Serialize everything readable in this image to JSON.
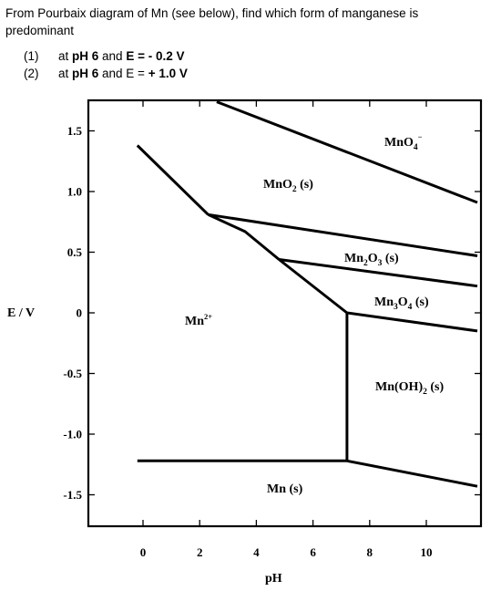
{
  "question": {
    "intro": "From Pourbaix diagram of Mn (see below), find which form of manganese is predominant",
    "items": [
      {
        "num": "(1)",
        "prefix": "at ",
        "ph": "pH 6",
        "mid": " and ",
        "e": "E = - 0.2 V"
      },
      {
        "num": "(2)",
        "prefix": "at ",
        "ph": "pH 6",
        "mid": " and E = ",
        "e": "+ 1.0 V"
      }
    ]
  },
  "diagram": {
    "xlabel": "pH",
    "ylabel": "E / V",
    "x_ticks": [
      "0",
      "2",
      "4",
      "6",
      "8",
      "10"
    ],
    "y_ticks": [
      "1.5",
      "1.0",
      "0.5",
      "0",
      "-0.5",
      "-1.0",
      "-1.5"
    ],
    "regions": {
      "mno4": {
        "base": "MnO",
        "sub": "4",
        "sup": "−"
      },
      "mno2": {
        "base": "MnO",
        "sub": "2",
        "tail": " (s)"
      },
      "mn2o3": {
        "a": "Mn",
        "sub1": "2",
        "b": "O",
        "sub2": "3",
        "tail": " (s)"
      },
      "mn3o4": {
        "a": "Mn",
        "sub1": "3",
        "b": "O",
        "sub2": "4",
        "tail": " (s)"
      },
      "mn2plus": {
        "base": "Mn",
        "sup": "2+"
      },
      "mnoh2": {
        "base": "Mn(OH)",
        "sub": "2",
        "tail": " (s)"
      },
      "mn": {
        "base": "Mn (s)"
      }
    },
    "boundaries": [
      {
        "name": "mno4-mno2",
        "points": [
          [
            2.6,
            1.74
          ],
          [
            11.8,
            0.91
          ]
        ]
      },
      {
        "name": "mn2plus-mno2",
        "points": [
          [
            -0.2,
            1.38
          ],
          [
            2.3,
            0.81
          ]
        ]
      },
      {
        "name": "mno2-mn2o3",
        "points": [
          [
            2.3,
            0.81
          ],
          [
            11.8,
            0.47
          ]
        ]
      },
      {
        "name": "mn2plus-mn2o3",
        "points": [
          [
            2.3,
            0.81
          ],
          [
            3.6,
            0.67
          ],
          [
            4.8,
            0.44
          ]
        ]
      },
      {
        "name": "mn2o3-mn3o4",
        "points": [
          [
            4.8,
            0.44
          ],
          [
            11.8,
            0.22
          ]
        ]
      },
      {
        "name": "mn2plus-mn3o4",
        "points": [
          [
            4.8,
            0.44
          ],
          [
            7.2,
            0.0
          ]
        ]
      },
      {
        "name": "mn3o4-mnoh2",
        "points": [
          [
            7.2,
            0.0
          ],
          [
            11.8,
            -0.15
          ]
        ]
      },
      {
        "name": "mn2plus-mnoh2",
        "points": [
          [
            7.2,
            0.0
          ],
          [
            7.2,
            -1.22
          ]
        ]
      },
      {
        "name": "mn2plus-mn",
        "points": [
          [
            -0.2,
            -1.22
          ],
          [
            7.2,
            -1.22
          ]
        ]
      },
      {
        "name": "mnoh2-mn",
        "points": [
          [
            7.2,
            -1.22
          ],
          [
            11.8,
            -1.43
          ]
        ]
      }
    ]
  }
}
